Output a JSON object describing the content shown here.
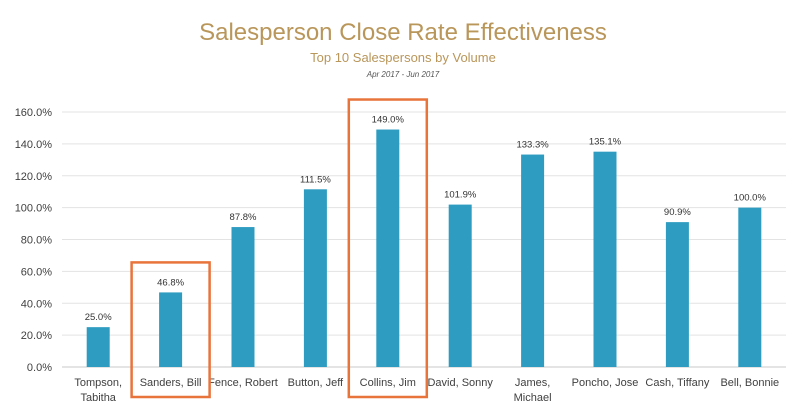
{
  "chart_data": {
    "type": "bar",
    "title": "Salesperson Close Rate Effectiveness",
    "subtitle": "Top 10 Salespersons by Volume",
    "date_range": "Apr 2017 - Jun 2017",
    "categories": [
      [
        "Tompson,",
        "Tabitha"
      ],
      [
        "Sanders, Bill"
      ],
      [
        "Fence, Robert"
      ],
      [
        "Button, Jeff"
      ],
      [
        "Collins, Jim"
      ],
      [
        "David, Sonny"
      ],
      [
        "James,",
        "Michael"
      ],
      [
        "Poncho, Jose"
      ],
      [
        "Cash, Tiffany"
      ],
      [
        "Bell, Bonnie"
      ]
    ],
    "values": [
      25.0,
      46.8,
      87.8,
      111.5,
      149.0,
      101.9,
      133.3,
      135.1,
      90.9,
      100.0
    ],
    "value_labels": [
      "25.0%",
      "46.8%",
      "87.8%",
      "111.5%",
      "149.0%",
      "101.9%",
      "133.3%",
      "135.1%",
      "90.9%",
      "100.0%"
    ],
    "y_ticks": [
      "0.0%",
      "20.0%",
      "40.0%",
      "60.0%",
      "80.0%",
      "100.0%",
      "120.0%",
      "140.0%",
      "160.0%"
    ],
    "ylim": [
      0,
      160
    ],
    "grid": true,
    "highlighted_categories": [
      "Sanders, Bill",
      "Collins, Jim"
    ],
    "colors": {
      "bar": "#2e9cc1",
      "title": "#b9965a",
      "grid": "#e3e3e3",
      "highlight": "#e8743b",
      "text": "#404040"
    }
  }
}
